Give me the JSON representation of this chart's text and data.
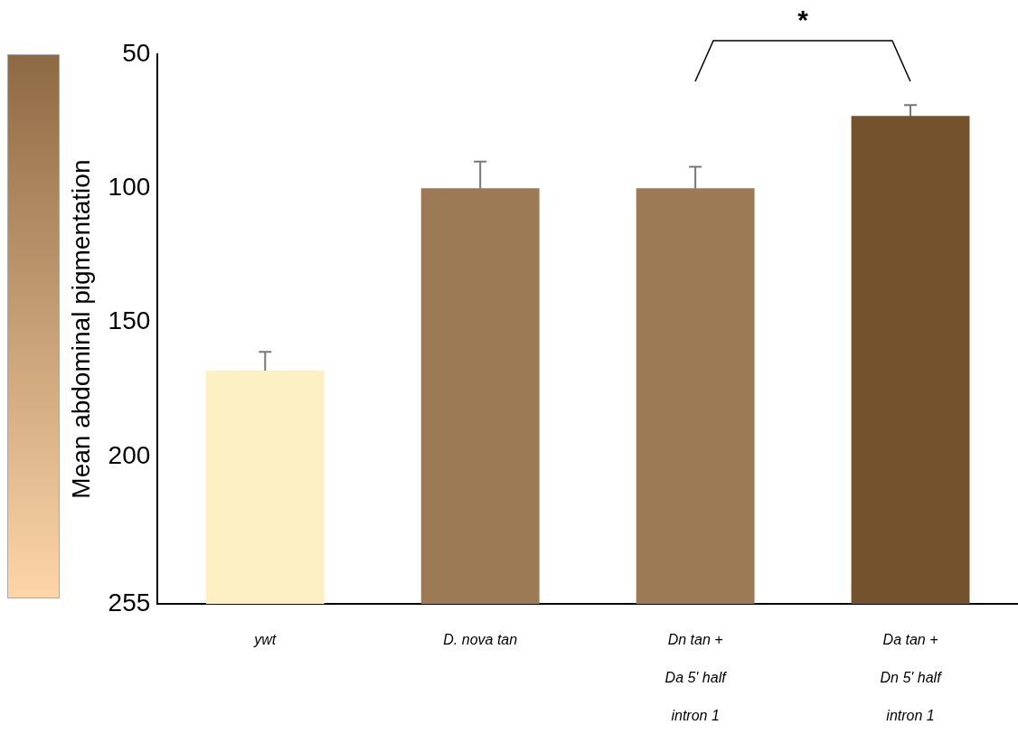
{
  "chart_data": {
    "type": "bar",
    "ylabel": "Mean abdominal pigmentation",
    "categories": [
      "ywt",
      "D. nova tan",
      "Dn tan + Da 5' half intron 1",
      "Da tan + Dn 5' half intron 1"
    ],
    "values": [
      -87,
      -155,
      -155,
      -182
    ],
    "base": [
      255,
      255,
      255,
      255
    ],
    "errors": [
      7,
      10,
      8,
      4
    ],
    "colors": [
      "#fdf0c4",
      "#9b7a55",
      "#9b7a55",
      "#74522e"
    ],
    "ylim": [
      255,
      50
    ],
    "yticks": [
      50,
      100,
      150,
      200,
      255
    ],
    "grid": false,
    "legend": false,
    "annotations": [
      "*"
    ]
  }
}
